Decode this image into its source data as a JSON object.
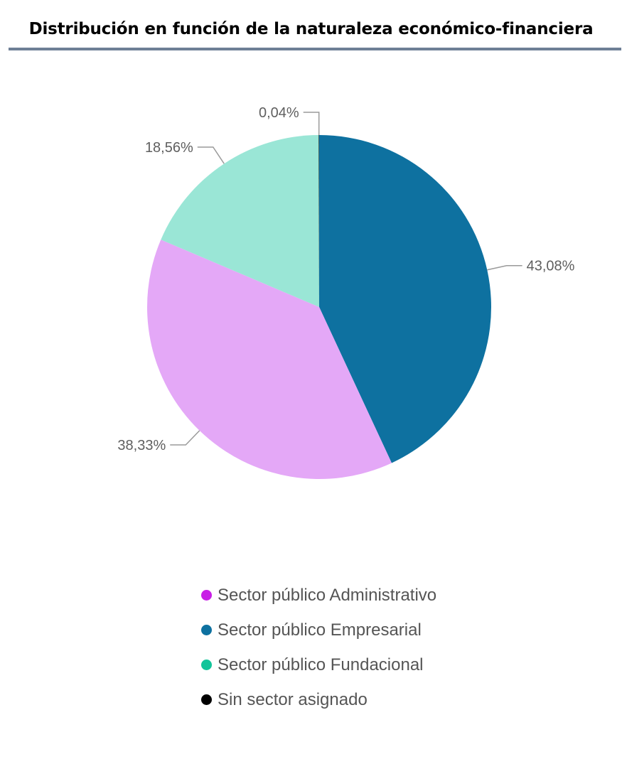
{
  "title": "Distribución en función de la naturaleza económico-financiera",
  "rule_color": "#6e7f96",
  "chart_data": {
    "type": "pie",
    "title": "Distribución en función de la naturaleza económico-financiera",
    "slices": [
      {
        "label": "Sector público Empresarial",
        "value": 43.08,
        "display": "43,08%",
        "color": "#0e71a0",
        "legend_color": "#0e71a0"
      },
      {
        "label": "Sector público Administrativo",
        "value": 38.33,
        "display": "38,33%",
        "color": "#e4a8f7",
        "legend_color": "#c81ee6"
      },
      {
        "label": "Sector público Fundacional",
        "value": 18.56,
        "display": "18,56%",
        "color": "#9ae6d6",
        "legend_color": "#12c49a"
      },
      {
        "label": "Sin sector asignado",
        "value": 0.04,
        "display": "0,04%",
        "color": "#000000",
        "legend_color": "#000000"
      }
    ],
    "start_angle": "12 o'clock",
    "direction": "clockwise",
    "legend_position": "bottom",
    "legend_order": [
      "Sector público Administrativo",
      "Sector público Empresarial",
      "Sector público Fundacional",
      "Sin sector asignado"
    ]
  },
  "legend": {
    "items": [
      {
        "label": "Sector público Administrativo",
        "color": "#c81ee6"
      },
      {
        "label": "Sector público Empresarial",
        "color": "#0e71a0"
      },
      {
        "label": "Sector público Fundacional",
        "color": "#12c49a"
      },
      {
        "label": "Sin sector asignado",
        "color": "#000000"
      }
    ]
  }
}
